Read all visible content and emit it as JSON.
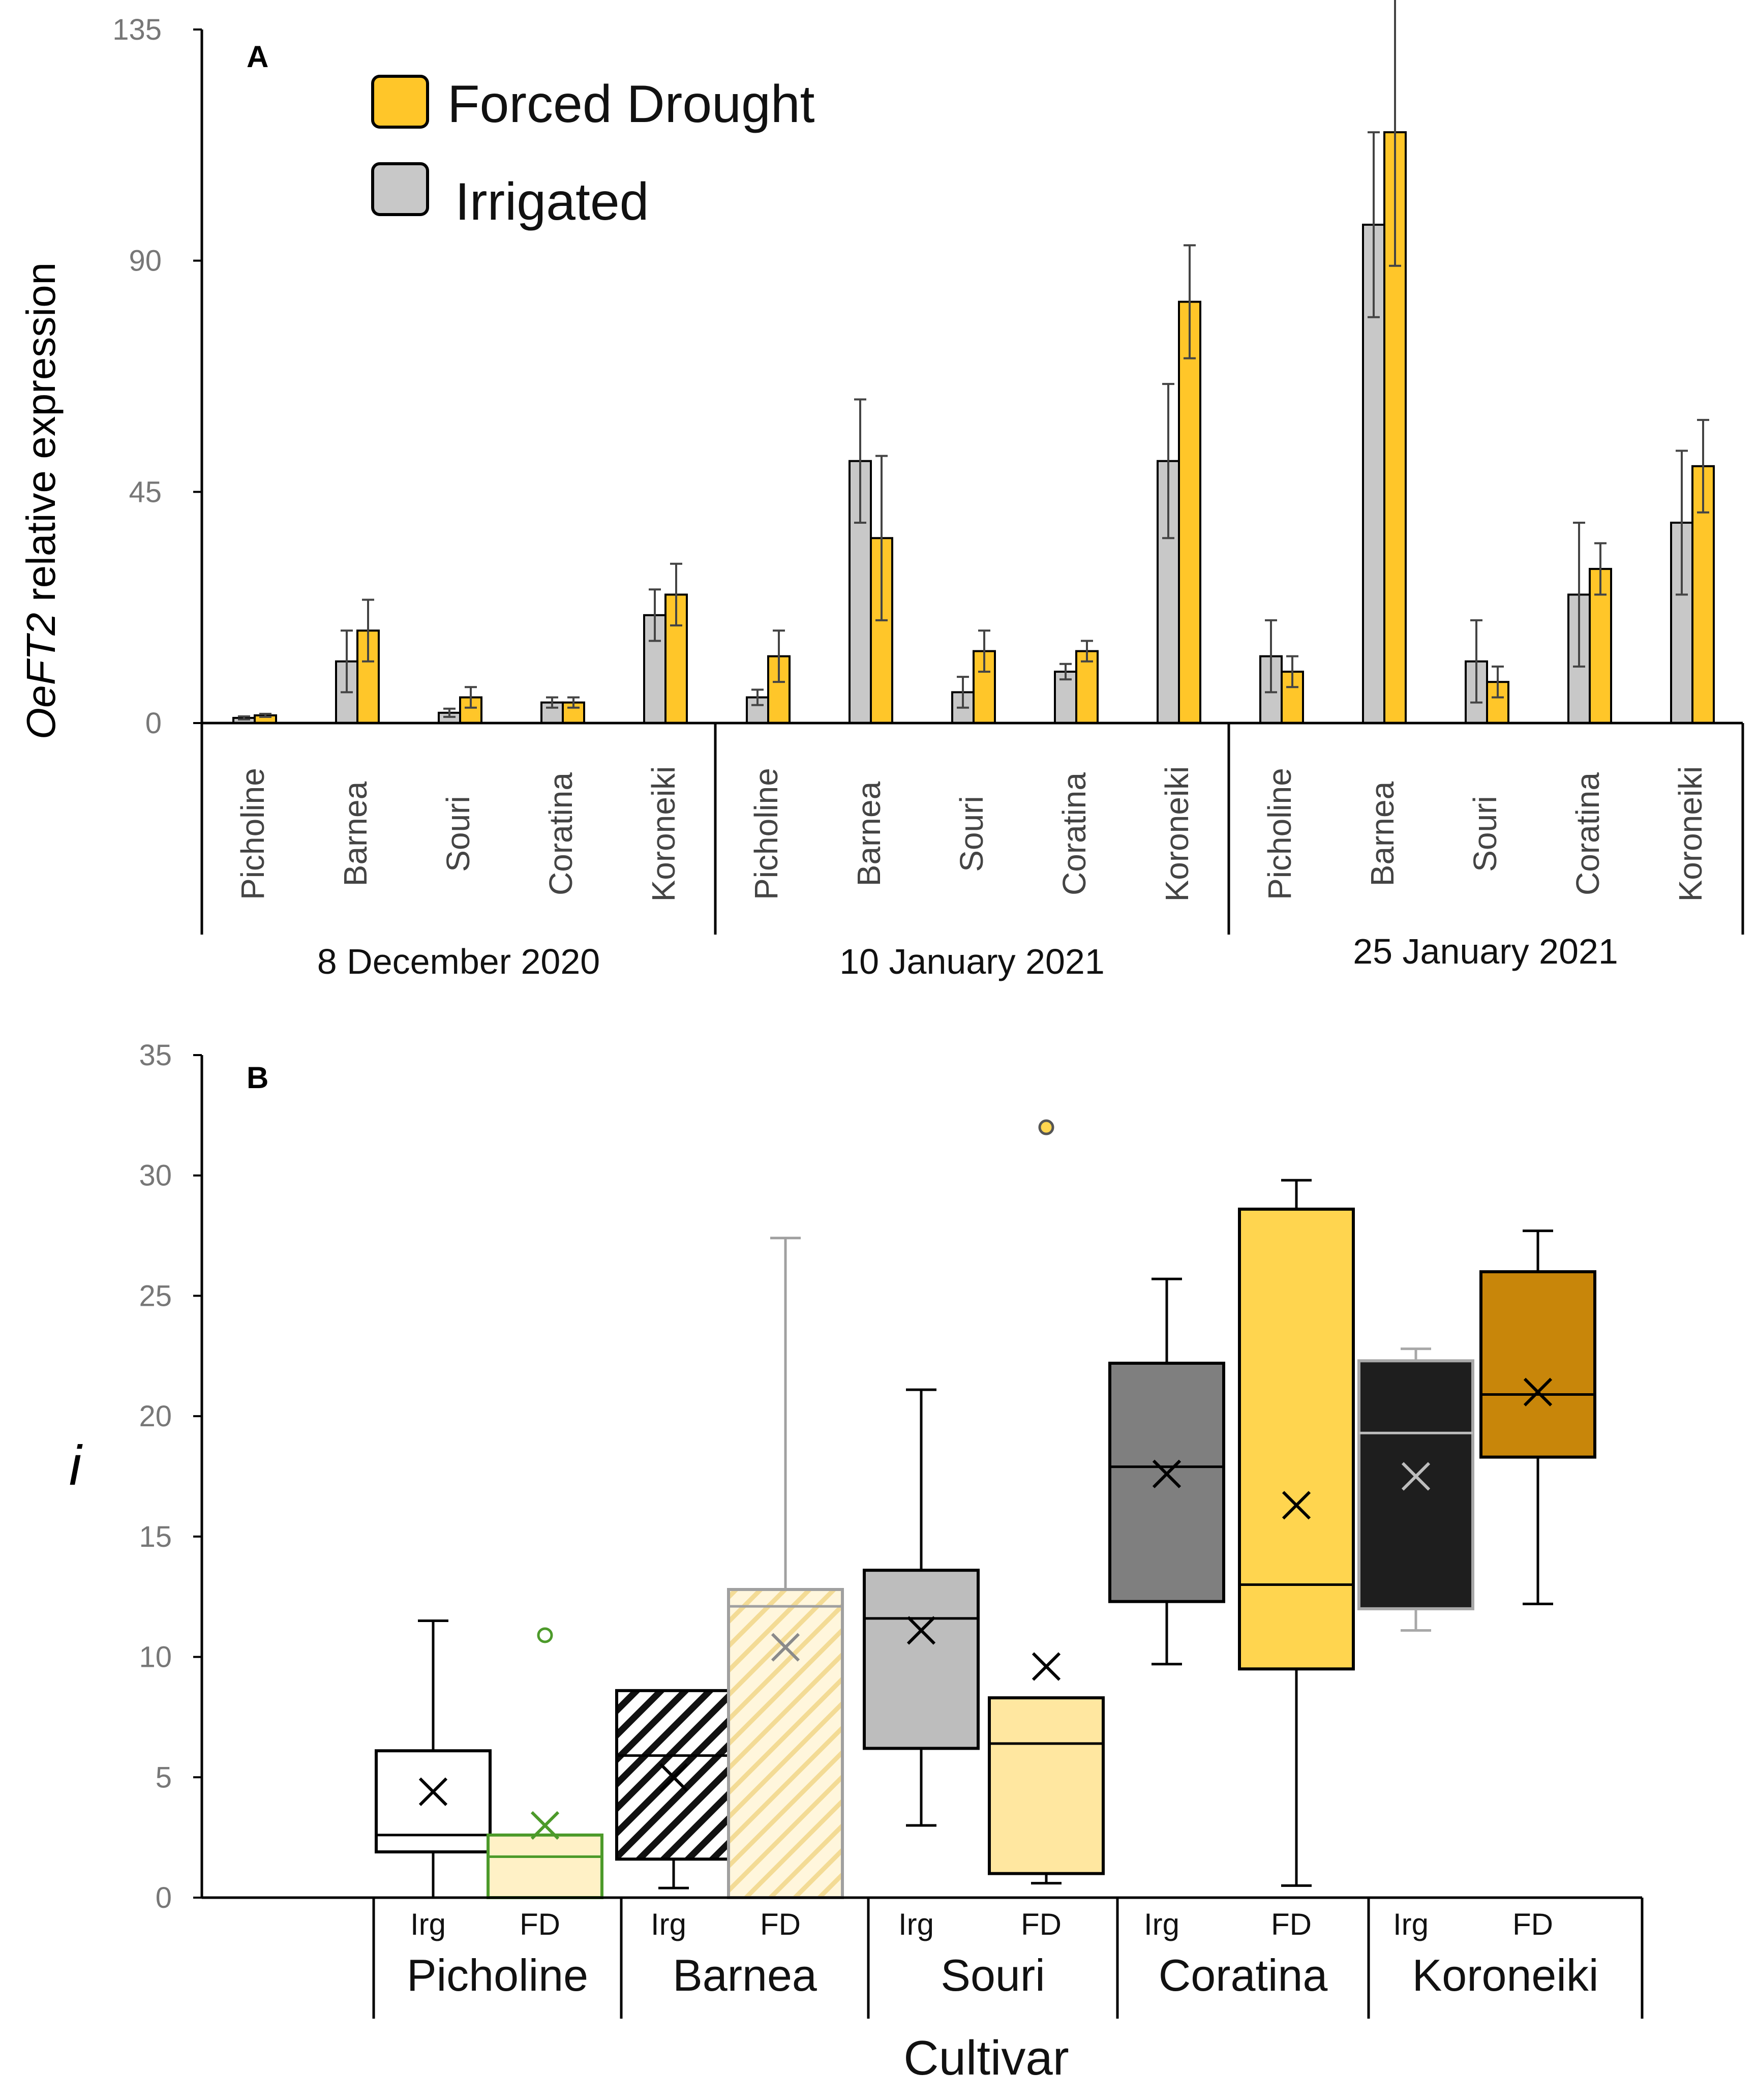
{
  "colors": {
    "forced_drought": "#FFC629",
    "irrigated": "#C8C8C8",
    "axis": "#000000",
    "tick_text": "#777777"
  },
  "chart_data": [
    {
      "panel": "A",
      "type": "bar",
      "ylabel_prefix": "Oe",
      "ylabel_gene": "FT2",
      "ylabel_suffix": " relative expression",
      "ylim": [
        0,
        135
      ],
      "yticks": [
        "0",
        "45",
        "90",
        "135"
      ],
      "legend": {
        "position": "top-left",
        "entries": [
          {
            "name": "Forced Drought",
            "color": "#FFC629"
          },
          {
            "name": "Irrigated",
            "color": "#C8C8C8"
          }
        ]
      },
      "groups": [
        {
          "date": "8 December 2020",
          "cultivars": [
            "Picholine",
            "Barnea",
            "Souri",
            "Coratina",
            "Koroneiki"
          ],
          "irrigated": {
            "values": [
              1,
              12,
              2,
              4,
              21
            ],
            "errors": [
              0.3,
              6,
              0.8,
              1,
              5
            ]
          },
          "forced_drought": {
            "values": [
              1.5,
              18,
              5,
              4,
              25
            ],
            "errors": [
              0.3,
              6,
              2,
              1,
              6
            ]
          }
        },
        {
          "date": "10 January 2021",
          "cultivars": [
            "Picholine",
            "Barnea",
            "Souri",
            "Coratina",
            "Koroneiki"
          ],
          "irrigated": {
            "values": [
              5,
              51,
              6,
              10,
              51
            ],
            "errors": [
              1.5,
              12,
              3,
              1.5,
              15
            ]
          },
          "forced_drought": {
            "values": [
              13,
              36,
              14,
              14,
              82
            ],
            "errors": [
              5,
              16,
              4,
              2,
              11
            ]
          }
        },
        {
          "date": "25 January 2021",
          "cultivars": [
            "Picholine",
            "Barnea",
            "Souri",
            "Coratina",
            "Koroneiki"
          ],
          "irrigated": {
            "values": [
              13,
              97,
              12,
              25,
              39
            ],
            "errors": [
              7,
              18,
              8,
              14,
              14
            ]
          },
          "forced_drought": {
            "values": [
              10,
              115,
              8,
              30,
              50
            ],
            "errors": [
              3,
              26,
              3,
              5,
              9
            ]
          }
        }
      ]
    },
    {
      "panel": "B",
      "type": "box",
      "ylabel": "i",
      "xlabel": "Cultivar",
      "ylim": [
        0,
        35
      ],
      "yticks": [
        "0",
        "5",
        "10",
        "15",
        "20",
        "25",
        "30",
        "35"
      ],
      "categories": [
        "Picholine",
        "Barnea",
        "Souri",
        "Coratina",
        "Koroneiki"
      ],
      "treatment_labels": [
        "Irg",
        "FD"
      ],
      "boxes": [
        {
          "cultivar": "Picholine",
          "treatment": "Irg",
          "whisker_low": 0,
          "q1": 1.9,
          "median": 2.6,
          "q3": 6.1,
          "whisker_high": 11.5,
          "mean": 4.4,
          "outliers": []
        },
        {
          "cultivar": "Picholine",
          "treatment": "FD",
          "whisker_low": 0,
          "q1": 0,
          "median": 1.7,
          "q3": 2.6,
          "whisker_high": 2.6,
          "mean": 3.0,
          "outliers": [
            10.9
          ]
        },
        {
          "cultivar": "Barnea",
          "treatment": "Irg",
          "whisker_low": 0.4,
          "q1": 1.6,
          "median": 5.9,
          "q3": 8.6,
          "whisker_high": 8.6,
          "mean": 5.0,
          "outliers": []
        },
        {
          "cultivar": "Barnea",
          "treatment": "FD",
          "whisker_low": 0,
          "q1": 0,
          "median": 12.1,
          "q3": 12.8,
          "whisker_high": 27.4,
          "mean": 10.4,
          "outliers": []
        },
        {
          "cultivar": "Souri",
          "treatment": "Irg",
          "whisker_low": 3.0,
          "q1": 6.2,
          "median": 11.6,
          "q3": 13.6,
          "whisker_high": 21.1,
          "mean": 11.1,
          "outliers": []
        },
        {
          "cultivar": "Souri",
          "treatment": "FD",
          "whisker_low": 0.6,
          "q1": 1.0,
          "median": 6.4,
          "q3": 8.3,
          "whisker_high": 8.3,
          "mean": 9.6,
          "outliers": [
            32.0
          ]
        },
        {
          "cultivar": "Coratina",
          "treatment": "Irg",
          "whisker_low": 9.7,
          "q1": 12.3,
          "median": 17.9,
          "q3": 22.2,
          "whisker_high": 25.7,
          "mean": 17.6,
          "outliers": []
        },
        {
          "cultivar": "Coratina",
          "treatment": "FD",
          "whisker_low": 0.5,
          "q1": 9.5,
          "median": 13.0,
          "q3": 28.6,
          "whisker_high": 29.8,
          "mean": 16.3,
          "outliers": []
        },
        {
          "cultivar": "Koroneiki",
          "treatment": "Irg",
          "whisker_low": 11.1,
          "q1": 12.0,
          "median": 19.3,
          "q3": 22.3,
          "whisker_high": 22.8,
          "mean": 17.5,
          "outliers": []
        },
        {
          "cultivar": "Koroneiki",
          "treatment": "FD",
          "whisker_low": 12.2,
          "q1": 18.3,
          "median": 20.9,
          "q3": 26.0,
          "whisker_high": 27.7,
          "mean": 21.0,
          "outliers": []
        }
      ]
    }
  ]
}
